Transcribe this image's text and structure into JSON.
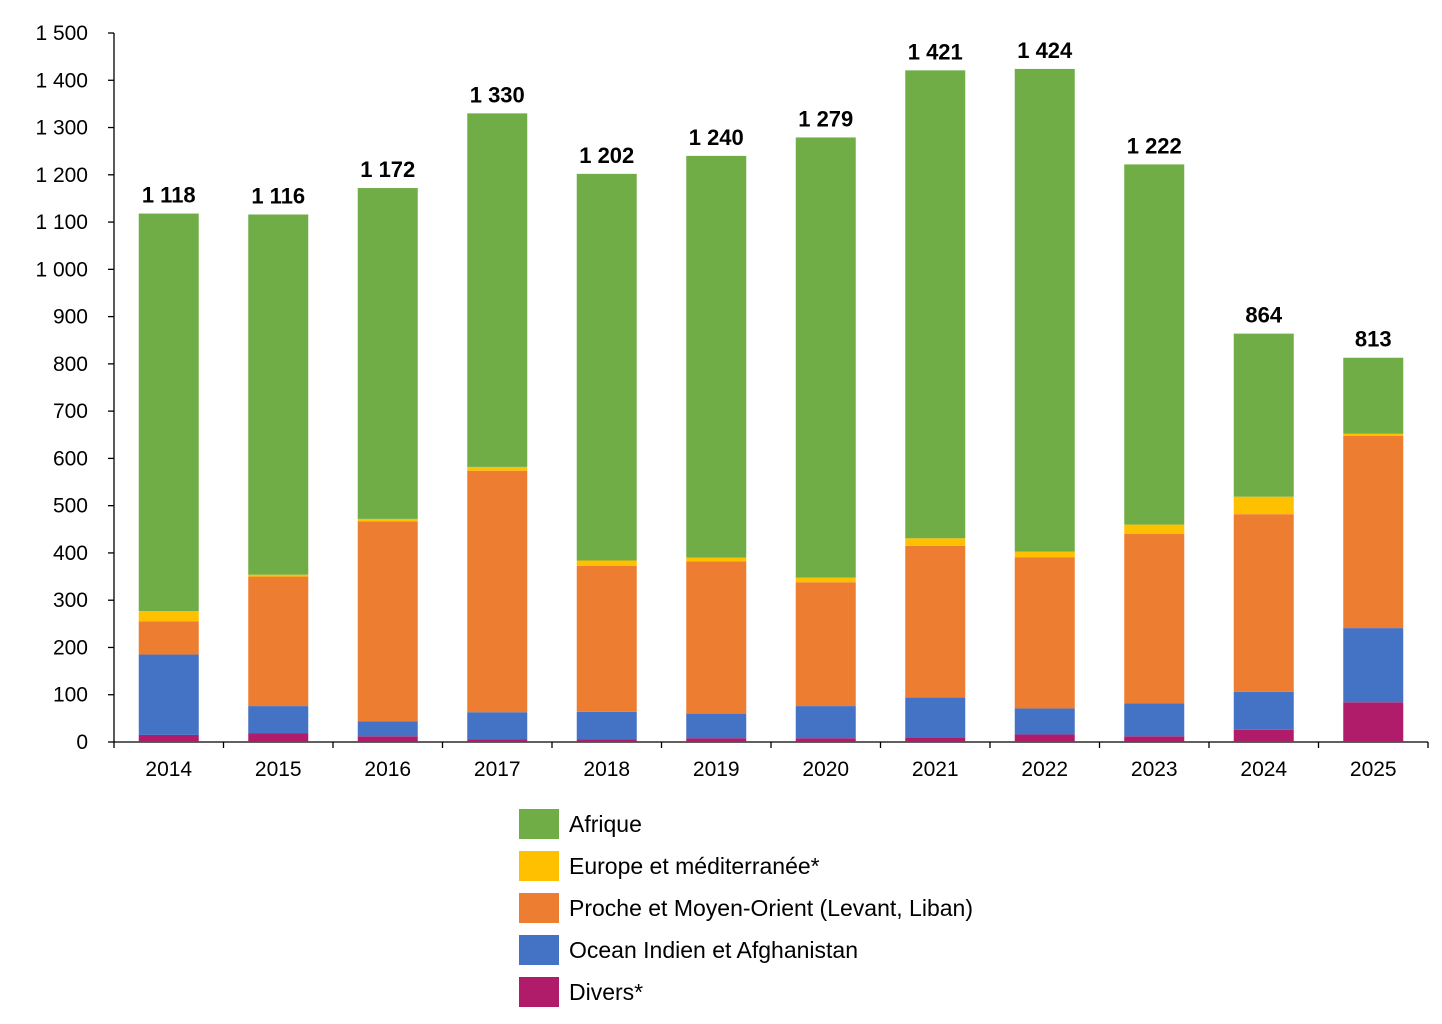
{
  "chart_data": {
    "type": "bar",
    "stacked": true,
    "title": "",
    "xlabel": "",
    "ylabel": "",
    "ylim": [
      0,
      1500
    ],
    "ytick_step": 100,
    "ytick_labels": [
      "0",
      "100",
      "200",
      "300",
      "400",
      "500",
      "600",
      "700",
      "800",
      "900",
      "1 000",
      "1 100",
      "1 200",
      "1 300",
      "1 400",
      "1 500"
    ],
    "categories": [
      "2014",
      "2015",
      "2016",
      "2017",
      "2018",
      "2019",
      "2020",
      "2021",
      "2022",
      "2023",
      "2024",
      "2025"
    ],
    "totals": [
      1118,
      1116,
      1172,
      1330,
      1202,
      1240,
      1279,
      1421,
      1424,
      1222,
      864,
      813
    ],
    "total_labels": [
      "1 118",
      "1 116",
      "1 172",
      "1 330",
      "1 202",
      "1 240",
      "1 279",
      "1 421",
      "1 424",
      "1 222",
      "864",
      "813"
    ],
    "series": [
      {
        "name": "Divers*",
        "color": "#b01c6a",
        "values": [
          15,
          18,
          12,
          6,
          6,
          8,
          8,
          10,
          16,
          12,
          26,
          84
        ]
      },
      {
        "name": "Ocean Indien et Afghanistan",
        "color": "#4472c4",
        "values": [
          170,
          58,
          32,
          57,
          58,
          52,
          68,
          84,
          55,
          70,
          80,
          157
        ]
      },
      {
        "name": "Proche et Moyen-Orient (Levant, Liban)",
        "color": "#ed7d31",
        "values": [
          70,
          274,
          423,
          511,
          309,
          322,
          262,
          321,
          320,
          358,
          376,
          407
        ]
      },
      {
        "name": "Europe et méditerranée*",
        "color": "#ffc000",
        "values": [
          22,
          4,
          5,
          8,
          11,
          8,
          10,
          16,
          12,
          20,
          37,
          4
        ]
      },
      {
        "name": "Afrique",
        "color": "#70ad47",
        "values": [
          841,
          762,
          700,
          748,
          818,
          850,
          931,
          990,
          1021,
          762,
          345,
          161
        ]
      }
    ],
    "legend": {
      "placement": "bottom",
      "order": [
        "Afrique",
        "Europe et méditerranée*",
        "Proche et Moyen-Orient (Levant, Liban)",
        "Ocean Indien et Afghanistan",
        "Divers*"
      ]
    },
    "grid": false
  }
}
